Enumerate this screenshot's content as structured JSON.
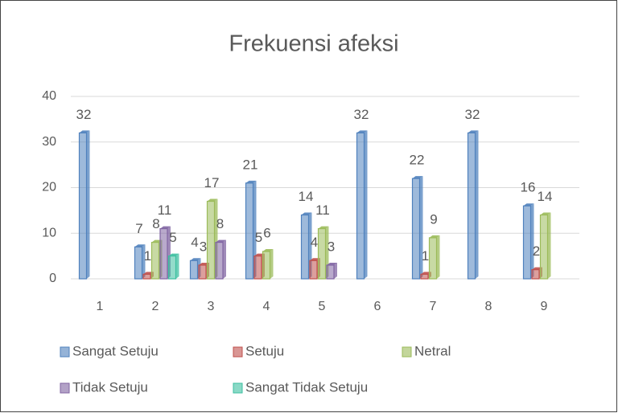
{
  "chart_data": {
    "type": "bar",
    "title": "Frekuensi afeksi",
    "categories": [
      "1",
      "2",
      "3",
      "4",
      "5",
      "6",
      "7",
      "8",
      "9"
    ],
    "series": [
      {
        "name": "Sangat Setuju",
        "color": "#4f81bd",
        "values": [
          32,
          7,
          4,
          21,
          14,
          32,
          22,
          32,
          16
        ]
      },
      {
        "name": "Setuju",
        "color": "#c0504d",
        "values": [
          null,
          1,
          3,
          5,
          4,
          null,
          1,
          null,
          2
        ]
      },
      {
        "name": "Netral",
        "color": "#9bbb59",
        "values": [
          null,
          8,
          17,
          6,
          11,
          null,
          9,
          null,
          14
        ]
      },
      {
        "name": "Tidak Setuju",
        "color": "#8064a2",
        "values": [
          null,
          11,
          8,
          null,
          3,
          null,
          null,
          null,
          null
        ]
      },
      {
        "name": "Sangat Tidak Setuju",
        "color": "#3cbfa0",
        "values": [
          null,
          5,
          null,
          null,
          null,
          null,
          null,
          null,
          null
        ]
      }
    ],
    "ylim": [
      0,
      40
    ],
    "yticks": [
      0,
      10,
      20,
      30,
      40
    ],
    "grid": true,
    "legend": "bottom"
  }
}
